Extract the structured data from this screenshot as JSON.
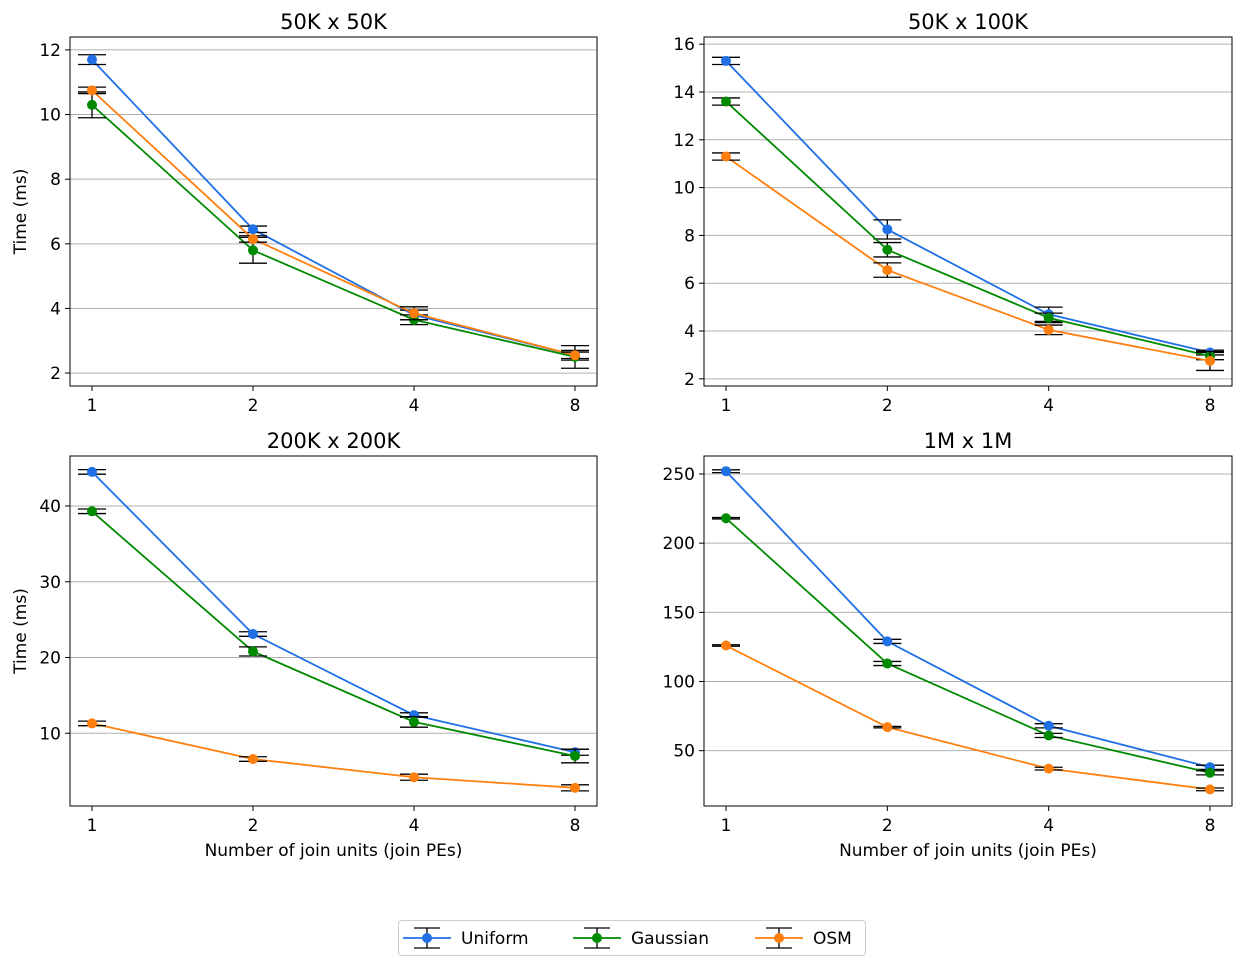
{
  "chart_data": [
    {
      "type": "line",
      "title": "50K x 50K",
      "xlabel": "",
      "ylabel": "Time (ms)",
      "x_categories": [
        "1",
        "2",
        "4",
        "8"
      ],
      "ylim": [
        1.6,
        12.4
      ],
      "yticks": [
        2,
        4,
        6,
        8,
        10,
        12
      ],
      "grid": "y",
      "series": [
        {
          "name": "Uniform",
          "color": "#1f6fe5",
          "values": [
            11.7,
            6.45,
            3.8,
            2.55
          ],
          "error": [
            0.15,
            0.1,
            0.15,
            0.15
          ]
        },
        {
          "name": "Gaussian",
          "color": "#008a00",
          "values": [
            10.3,
            5.8,
            3.65,
            2.5
          ],
          "error": [
            0.4,
            0.4,
            0.15,
            0.35
          ]
        },
        {
          "name": "OSM",
          "color": "#ff7f0e",
          "values": [
            10.75,
            6.15,
            3.85,
            2.55
          ],
          "error": [
            0.1,
            0.1,
            0.2,
            0.1
          ]
        }
      ]
    },
    {
      "type": "line",
      "title": "50K x 100K",
      "xlabel": "",
      "ylabel": "",
      "x_categories": [
        "1",
        "2",
        "4",
        "8"
      ],
      "ylim": [
        1.7,
        16.3
      ],
      "yticks": [
        2,
        4,
        6,
        8,
        10,
        12,
        14,
        16
      ],
      "grid": "y",
      "series": [
        {
          "name": "Uniform",
          "color": "#1f6fe5",
          "values": [
            15.3,
            8.25,
            4.7,
            3.1
          ],
          "error": [
            0.15,
            0.4,
            0.3,
            0.1
          ]
        },
        {
          "name": "Gaussian",
          "color": "#008a00",
          "values": [
            13.6,
            7.4,
            4.55,
            2.95
          ],
          "error": [
            0.15,
            0.3,
            0.2,
            0.15
          ]
        },
        {
          "name": "OSM",
          "color": "#ff7f0e",
          "values": [
            11.3,
            6.55,
            4.05,
            2.75
          ],
          "error": [
            0.15,
            0.3,
            0.2,
            0.4
          ]
        }
      ]
    },
    {
      "type": "line",
      "title": "200K x 200K",
      "xlabel": "Number of join units (join PEs)",
      "ylabel": "Time (ms)",
      "x_categories": [
        "1",
        "2",
        "4",
        "8"
      ],
      "ylim": [
        0.4,
        46.6
      ],
      "yticks": [
        10,
        20,
        30,
        40
      ],
      "grid": "y",
      "series": [
        {
          "name": "Uniform",
          "color": "#1f6fe5",
          "values": [
            44.5,
            23.1,
            12.4,
            7.5
          ],
          "error": [
            0.3,
            0.3,
            0.3,
            0.4
          ]
        },
        {
          "name": "Gaussian",
          "color": "#008a00",
          "values": [
            39.3,
            20.8,
            11.5,
            7.0
          ],
          "error": [
            0.3,
            0.6,
            0.7,
            0.9
          ]
        },
        {
          "name": "OSM",
          "color": "#ff7f0e",
          "values": [
            11.3,
            6.6,
            4.2,
            2.8
          ],
          "error": [
            0.3,
            0.3,
            0.4,
            0.4
          ]
        }
      ]
    },
    {
      "type": "line",
      "title": "1M x 1M",
      "xlabel": "Number of join units (join PEs)",
      "ylabel": "",
      "x_categories": [
        "1",
        "2",
        "4",
        "8"
      ],
      "ylim": [
        10,
        263
      ],
      "yticks": [
        50,
        100,
        150,
        200,
        250
      ],
      "grid": "y",
      "series": [
        {
          "name": "Uniform",
          "color": "#1f6fe5",
          "values": [
            252,
            129,
            68,
            38
          ],
          "error": [
            1,
            1.5,
            1.5,
            1.5
          ]
        },
        {
          "name": "Gaussian",
          "color": "#008a00",
          "values": [
            218,
            113,
            61,
            34
          ],
          "error": [
            0.5,
            1.5,
            1.5,
            1.5
          ]
        },
        {
          "name": "OSM",
          "color": "#ff7f0e",
          "values": [
            126,
            67,
            37,
            22
          ],
          "error": [
            0.5,
            0.5,
            1,
            1
          ]
        }
      ]
    }
  ],
  "legend": {
    "placement": "bottom-center",
    "items": [
      {
        "label": "Uniform",
        "color": "#1f6fe5"
      },
      {
        "label": "Gaussian",
        "color": "#008a00"
      },
      {
        "label": "OSM",
        "color": "#ff7f0e"
      }
    ]
  }
}
